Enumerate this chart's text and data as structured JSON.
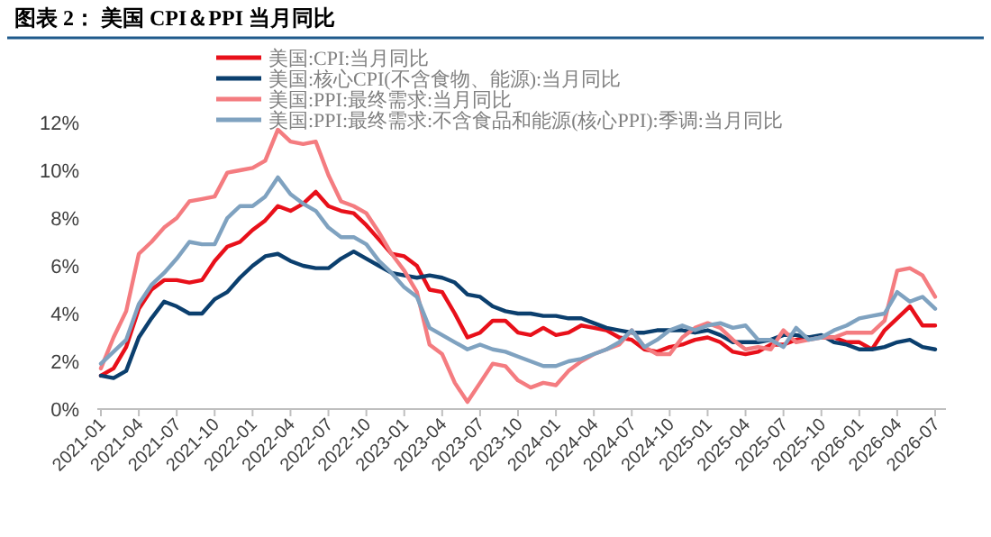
{
  "chart_data": {
    "type": "line",
    "title": "图表 2：  美国 CPI＆PPI 当月同比",
    "categories": [
      "2021-01",
      null,
      null,
      "2021-04",
      null,
      null,
      "2021-07",
      null,
      null,
      "2021-10",
      null,
      null,
      "2022-01",
      null,
      null,
      "2022-04",
      null,
      null,
      "2022-07",
      null,
      null,
      "2022-10",
      null,
      null,
      "2023-01",
      null,
      null,
      "2023-04",
      null,
      null,
      "2023-07",
      null,
      null,
      "2023-10",
      null,
      null,
      "2024-01",
      null,
      null,
      "2024-04",
      null,
      null,
      "2024-07",
      null,
      null,
      "2024-10",
      null,
      null,
      "2025-01",
      null,
      null,
      "2025-04",
      null,
      null,
      "2025-07",
      null,
      null,
      "2025-10",
      null,
      null,
      "2026-01",
      null,
      null,
      "2026-04",
      null,
      null,
      "2026-07"
    ],
    "series": [
      {
        "name": "美国:CPI:当月同比",
        "color": "#e8101a",
        "values": [
          1.4,
          1.7,
          2.6,
          4.2,
          5.0,
          5.4,
          5.4,
          5.3,
          5.4,
          6.2,
          6.8,
          7.0,
          7.5,
          7.9,
          8.5,
          8.3,
          8.6,
          9.1,
          8.5,
          8.3,
          8.2,
          7.7,
          7.1,
          6.5,
          6.4,
          6.0,
          5.0,
          4.9,
          4.0,
          3.0,
          3.2,
          3.7,
          3.7,
          3.2,
          3.1,
          3.4,
          3.1,
          3.2,
          3.5,
          3.4,
          3.3,
          3.0,
          2.9,
          2.5,
          2.4,
          2.6,
          2.7,
          2.9,
          3.0,
          2.8,
          2.4,
          2.3,
          2.4,
          2.7,
          2.7,
          2.9,
          3.0,
          3.0,
          3.0,
          2.8,
          2.8,
          2.5,
          3.3,
          3.8,
          4.3,
          3.5,
          3.5
        ]
      },
      {
        "name": "美国:核心CPI(不含食物、能源):当月同比",
        "color": "#0b3f6e",
        "values": [
          1.4,
          1.3,
          1.6,
          3.0,
          3.8,
          4.5,
          4.3,
          4.0,
          4.0,
          4.6,
          4.9,
          5.5,
          6.0,
          6.4,
          6.5,
          6.2,
          6.0,
          5.9,
          5.9,
          6.3,
          6.6,
          6.3,
          6.0,
          5.7,
          5.6,
          5.5,
          5.6,
          5.5,
          5.3,
          4.8,
          4.7,
          4.3,
          4.1,
          4.0,
          4.0,
          3.9,
          3.9,
          3.8,
          3.8,
          3.6,
          3.4,
          3.3,
          3.2,
          3.2,
          3.3,
          3.3,
          3.3,
          3.2,
          3.3,
          3.1,
          2.8,
          2.8,
          2.8,
          2.9,
          3.1,
          3.1,
          3.0,
          3.1,
          2.8,
          2.7,
          2.5,
          2.5,
          2.6,
          2.8,
          2.9,
          2.6,
          2.5
        ]
      },
      {
        "name": "美国:PPI:最终需求:当月同比",
        "color": "#f47c80",
        "values": [
          1.7,
          3.0,
          4.1,
          6.5,
          7.0,
          7.6,
          8.0,
          8.7,
          8.8,
          8.9,
          9.9,
          10.0,
          10.1,
          10.4,
          11.7,
          11.2,
          11.1,
          11.2,
          9.8,
          8.7,
          8.5,
          8.2,
          7.4,
          6.5,
          5.8,
          4.9,
          2.7,
          2.3,
          1.1,
          0.3,
          1.1,
          1.9,
          1.8,
          1.2,
          0.9,
          1.1,
          1.0,
          1.6,
          2.0,
          2.3,
          2.5,
          2.7,
          3.3,
          2.6,
          2.3,
          2.3,
          3.0,
          3.4,
          3.6,
          3.4,
          2.9,
          2.5,
          2.6,
          2.5,
          3.3,
          2.8,
          2.9,
          3.0,
          3.0,
          3.2,
          3.2,
          3.2,
          3.7,
          5.8,
          5.9,
          5.6,
          4.7
        ]
      },
      {
        "name": "美国:PPI:最终需求:不含食品和能源(核心PPI):季调:当月同比",
        "color": "#7fa2c0",
        "values": [
          1.9,
          2.4,
          2.9,
          4.4,
          5.2,
          5.7,
          6.3,
          7.0,
          6.9,
          6.9,
          8.0,
          8.5,
          8.5,
          8.9,
          9.7,
          9.0,
          8.6,
          8.3,
          7.6,
          7.2,
          7.2,
          6.9,
          6.2,
          5.7,
          5.1,
          4.7,
          3.4,
          3.1,
          2.8,
          2.5,
          2.7,
          2.5,
          2.4,
          2.2,
          2.0,
          1.8,
          1.8,
          2.0,
          2.1,
          2.3,
          2.5,
          2.8,
          3.3,
          2.6,
          2.9,
          3.3,
          3.5,
          3.3,
          3.5,
          3.6,
          3.4,
          3.5,
          2.9,
          2.9,
          2.6,
          3.4,
          2.9,
          3.0,
          3.3,
          3.5,
          3.8,
          3.9,
          4.0,
          4.9,
          4.5,
          4.7,
          4.2
        ]
      }
    ],
    "ylim": [
      0,
      12
    ],
    "yticks": [
      {
        "value": 0,
        "label": "0%"
      },
      {
        "value": 2,
        "label": "2%"
      },
      {
        "value": 4,
        "label": "4%"
      },
      {
        "value": 6,
        "label": "6%"
      },
      {
        "value": 8,
        "label": "8%"
      },
      {
        "value": 10,
        "label": "10%"
      },
      {
        "value": 12,
        "label": "12%"
      }
    ],
    "grid": false,
    "legend": "top left",
    "marker": "none",
    "line_style": "solid"
  }
}
